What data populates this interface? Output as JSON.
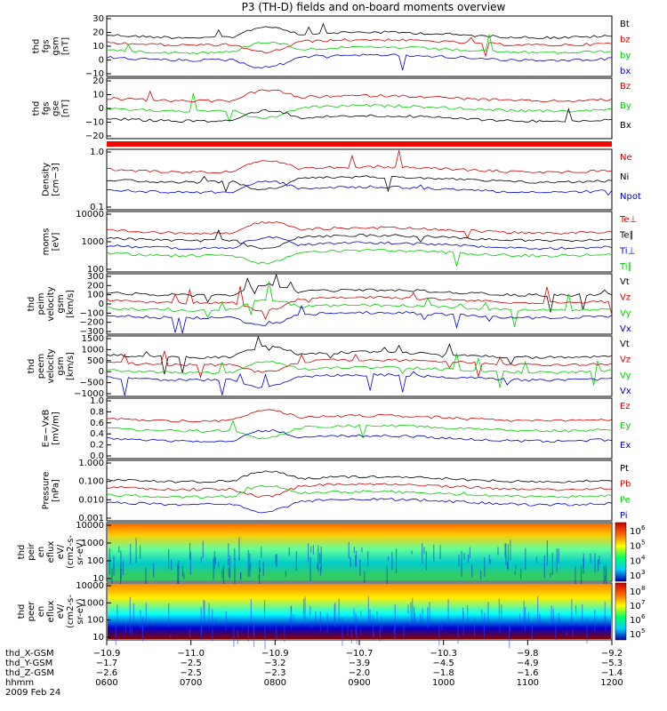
{
  "title": "P3 (TH-D) fields and on-board moments overview",
  "colors": {
    "black": "#000000",
    "red": "#cc0000",
    "green": "#00cc00",
    "blue": "#0000cc",
    "flag": "#ff0000"
  },
  "chart_data": [
    {
      "type": "line",
      "ylabel": [
        "thd",
        "fgs",
        "gsm",
        "[nT]"
      ],
      "yticks": [
        "30",
        "20",
        "10",
        "0",
        "−10"
      ],
      "ylim": [
        -18,
        32
      ],
      "legend": [
        {
          "name": "Bt",
          "color": "black"
        },
        {
          "name": "bz",
          "color": "red"
        },
        {
          "name": "by",
          "color": "green"
        },
        {
          "name": "bx",
          "color": "blue"
        }
      ]
    },
    {
      "type": "line",
      "ylabel": [
        "thd",
        "fgs",
        "gse",
        "[nT]"
      ],
      "yticks": [
        "20",
        "10",
        "0",
        "−10",
        "−20"
      ],
      "ylim": [
        -26,
        24
      ],
      "legend": [
        {
          "name": "Bz",
          "color": "red"
        },
        {
          "name": "By",
          "color": "green"
        },
        {
          "name": "Bx",
          "color": "black"
        }
      ]
    },
    {
      "type": "line",
      "ylabel": [
        "Density",
        "[cm−3]"
      ],
      "yticks": [
        "1.0",
        "0.1"
      ],
      "ylim": [
        0.1,
        1.2
      ],
      "log": true,
      "legend": [
        {
          "name": "Ne",
          "color": "red"
        },
        {
          "name": "Ni",
          "color": "black"
        },
        {
          "name": "Npot",
          "color": "blue"
        }
      ]
    },
    {
      "type": "line",
      "ylabel": [
        "moms",
        "[eV]"
      ],
      "yticks": [
        "10000",
        "1000",
        "100"
      ],
      "ylim": [
        100,
        15000
      ],
      "log": true,
      "legend": [
        {
          "name": "Te⊥",
          "color": "red"
        },
        {
          "name": "Te∥",
          "color": "black"
        },
        {
          "name": "Ti⊥",
          "color": "blue"
        },
        {
          "name": "Ti∥",
          "color": "green"
        }
      ]
    },
    {
      "type": "line",
      "ylabel": [
        "thd",
        "peim",
        "velocity",
        "gsm",
        "[km/s]"
      ],
      "yticks": [
        "300",
        "200",
        "100",
        "0",
        "−100",
        "−200",
        "−300"
      ],
      "ylim": [
        -300,
        300
      ],
      "legend": [
        {
          "name": "Vt",
          "color": "black"
        },
        {
          "name": "Vz",
          "color": "red"
        },
        {
          "name": "Vy",
          "color": "green"
        },
        {
          "name": "Vx",
          "color": "blue"
        }
      ]
    },
    {
      "type": "line",
      "ylabel": [
        "thd",
        "peem",
        "velocity",
        "gsm",
        "[km/s]"
      ],
      "yticks": [
        "1500",
        "1000",
        "500",
        "0",
        "−500",
        "−1000"
      ],
      "ylim": [
        -1500,
        1500
      ],
      "legend": [
        {
          "name": "Vt",
          "color": "black"
        },
        {
          "name": "Vz",
          "color": "red"
        },
        {
          "name": "Vy",
          "color": "green"
        },
        {
          "name": "Vx",
          "color": "blue"
        }
      ]
    },
    {
      "type": "line",
      "ylabel": [
        "E=−VxB",
        "[mV/m]"
      ],
      "yticks": [
        "1.0",
        "0.8",
        "0.6",
        "0.4",
        "0.2",
        "0.0"
      ],
      "ylim": [
        0,
        1
      ],
      "legend": [
        {
          "name": "Ez",
          "color": "red"
        },
        {
          "name": "Ey",
          "color": "green"
        },
        {
          "name": "Ex",
          "color": "blue"
        }
      ]
    },
    {
      "type": "line",
      "ylabel": [
        "Pressure",
        "[nPa]"
      ],
      "yticks": [
        "1.000",
        "0.100",
        "0.010",
        "0.001"
      ],
      "ylim": [
        0.001,
        1.3
      ],
      "log": true,
      "legend": [
        {
          "name": "Pt",
          "color": "black"
        },
        {
          "name": "Pb",
          "color": "red"
        },
        {
          "name": "Pe",
          "color": "green"
        },
        {
          "name": "Pi",
          "color": "blue"
        }
      ]
    },
    {
      "type": "heatmap",
      "ylabel": [
        "thd",
        "peir",
        "en",
        "eflux",
        "eV/",
        "(cm2-s-",
        "sr-eV)"
      ],
      "yticks": [
        "10000",
        "1000",
        "100",
        "10"
      ],
      "ylim": [
        8,
        20000
      ],
      "log": true,
      "colorbar": [
        "10",
        "10",
        "10",
        "10"
      ],
      "colorbar_exp": [
        "6",
        "5",
        "4",
        "3"
      ]
    },
    {
      "type": "heatmap",
      "ylabel": [
        "thd",
        "peer",
        "en",
        "eflux",
        "eV/",
        "(cm2-s-",
        "sr-eV)"
      ],
      "yticks": [
        "10000",
        "1000",
        "100",
        "10"
      ],
      "ylim": [
        8,
        20000
      ],
      "log": true,
      "colorbar": [
        "10",
        "10",
        "10",
        "10"
      ],
      "colorbar_exp": [
        "8",
        "7",
        "6",
        "5"
      ]
    }
  ],
  "xaxis": {
    "rows": [
      {
        "label": "thd_X-GSM",
        "values": [
          "−10.9",
          "−11.0",
          "−10.9",
          "−10.7",
          "−10.3",
          "−9.8",
          "−9.2"
        ]
      },
      {
        "label": "thd_Y-GSM",
        "values": [
          "−1.7",
          "−2.5",
          "−3.2",
          "−3.9",
          "−4.5",
          "−4.9",
          "−5.3"
        ]
      },
      {
        "label": "thd_Z-GSM",
        "values": [
          "−2.6",
          "−2.5",
          "−2.3",
          "−2.0",
          "−1.8",
          "−1.6",
          "−1.4"
        ]
      },
      {
        "label": "hhmm",
        "values": [
          "0600",
          "0700",
          "0800",
          "0900",
          "1000",
          "1100",
          "1200"
        ]
      }
    ],
    "date": "2009 Feb 24"
  }
}
